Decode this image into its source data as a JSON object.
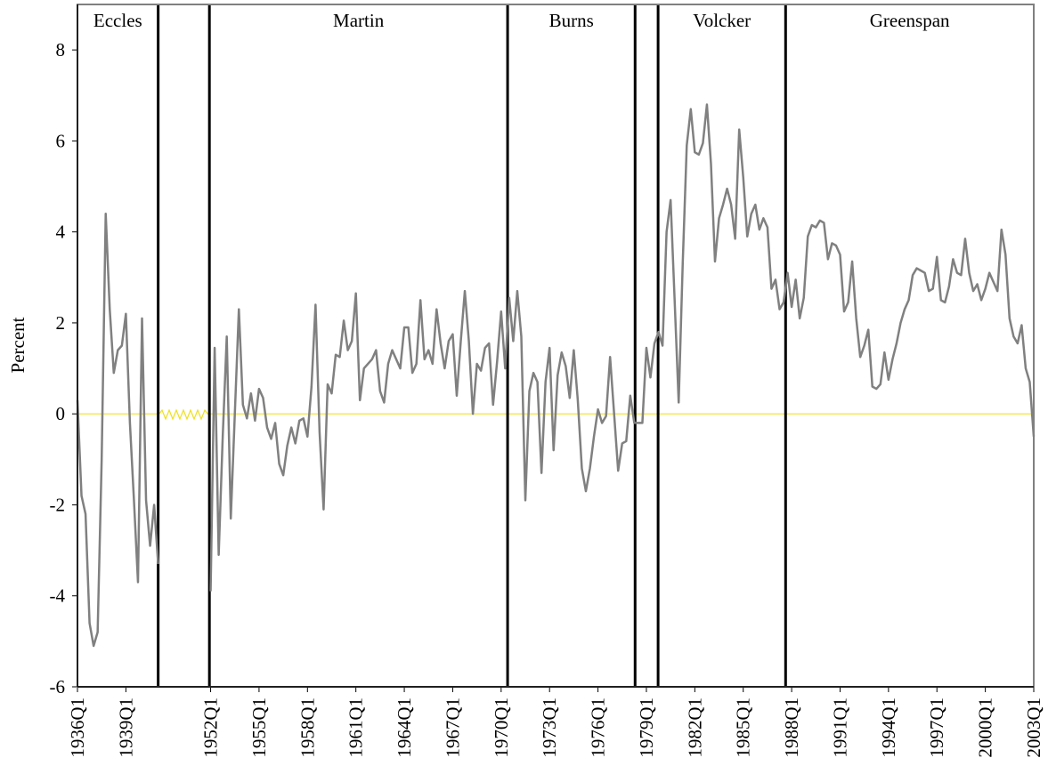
{
  "chart_data": {
    "type": "line",
    "y_label": "Percent",
    "annotations": [
      "Eccles",
      "Martin",
      "Burns",
      "Volcker",
      "Greenspan"
    ],
    "categories": [
      "1936Q1",
      null,
      null,
      null,
      null,
      null,
      null,
      null,
      null,
      null,
      null,
      null,
      "1939Q1",
      null,
      null,
      null,
      null,
      null,
      null,
      null,
      null,
      null,
      null,
      null,
      null,
      null,
      null,
      null,
      null,
      null,
      null,
      null,
      null,
      "1952Q1",
      null,
      null,
      null,
      null,
      null,
      null,
      null,
      null,
      null,
      null,
      null,
      "1955Q1",
      null,
      null,
      null,
      null,
      null,
      null,
      null,
      null,
      null,
      null,
      null,
      "1958Q1",
      null,
      null,
      null,
      null,
      null,
      null,
      null,
      null,
      null,
      null,
      null,
      "1961Q1",
      null,
      null,
      null,
      null,
      null,
      null,
      null,
      null,
      null,
      null,
      null,
      "1964Q1",
      null,
      null,
      null,
      null,
      null,
      null,
      null,
      null,
      null,
      null,
      null,
      "1967Q1",
      null,
      null,
      null,
      null,
      null,
      null,
      null,
      null,
      null,
      null,
      null,
      "1970Q1",
      null,
      null,
      null,
      null,
      null,
      null,
      null,
      null,
      null,
      null,
      null,
      "1973Q1",
      null,
      null,
      null,
      null,
      null,
      null,
      null,
      null,
      null,
      null,
      null,
      "1976Q1",
      null,
      null,
      null,
      null,
      null,
      null,
      null,
      null,
      null,
      null,
      null,
      "1979Q1",
      null,
      null,
      null,
      null,
      null,
      null,
      null,
      null,
      null,
      null,
      null,
      "1982Q1",
      null,
      null,
      null,
      null,
      null,
      null,
      null,
      null,
      null,
      null,
      null,
      "1985Q1",
      null,
      null,
      null,
      null,
      null,
      null,
      null,
      null,
      null,
      null,
      null,
      "1988Q1",
      null,
      null,
      null,
      null,
      null,
      null,
      null,
      null,
      null,
      null,
      null,
      "1991Q1",
      null,
      null,
      null,
      null,
      null,
      null,
      null,
      null,
      null,
      null,
      null,
      "1994Q1",
      null,
      null,
      null,
      null,
      null,
      null,
      null,
      null,
      null,
      null,
      null,
      "1997Q1",
      null,
      null,
      null,
      null,
      null,
      null,
      null,
      null,
      null,
      null,
      null,
      "2000Q1",
      null,
      null,
      null,
      null,
      null,
      null,
      null,
      null,
      null,
      null,
      null,
      "2003Q1"
    ],
    "values": [
      0.3,
      -1.8,
      -2.2,
      -4.6,
      -5.1,
      -4.8,
      -1.0,
      4.4,
      2.3,
      0.9,
      1.4,
      1.5,
      2.2,
      -0.2,
      -1.9,
      -3.7,
      2.1,
      -1.9,
      -2.9,
      -2.0,
      -3.3,
      null,
      null,
      null,
      null,
      null,
      null,
      null,
      null,
      null,
      null,
      null,
      null,
      -3.9,
      1.45,
      -3.1,
      -0.5,
      1.7,
      -2.3,
      0.0,
      2.3,
      0.2,
      -0.1,
      0.45,
      -0.15,
      0.55,
      0.35,
      -0.3,
      -0.55,
      -0.2,
      -1.1,
      -1.35,
      -0.7,
      -0.3,
      -0.65,
      -0.15,
      -0.1,
      -0.5,
      0.6,
      2.4,
      -0.4,
      -2.1,
      0.65,
      0.45,
      1.3,
      1.25,
      2.05,
      1.4,
      1.6,
      2.65,
      0.3,
      1.0,
      1.1,
      1.2,
      1.4,
      0.5,
      0.25,
      1.1,
      1.4,
      1.2,
      1.0,
      1.9,
      1.9,
      0.9,
      1.1,
      2.5,
      1.2,
      1.4,
      1.1,
      2.3,
      1.55,
      1.0,
      1.6,
      1.75,
      0.4,
      1.6,
      2.7,
      1.6,
      0.0,
      1.1,
      0.95,
      1.45,
      1.55,
      0.2,
      1.15,
      2.25,
      1.0,
      2.55,
      1.6,
      2.7,
      1.7,
      -1.9,
      0.5,
      0.9,
      0.7,
      -1.3,
      0.7,
      1.45,
      -0.8,
      0.85,
      1.35,
      1.05,
      0.35,
      1.4,
      0.3,
      -1.2,
      -1.7,
      -1.2,
      -0.5,
      0.1,
      -0.2,
      -0.05,
      1.25,
      0.0,
      -1.25,
      -0.65,
      -0.6,
      0.4,
      -0.2,
      -0.2,
      -0.2,
      1.45,
      0.8,
      1.55,
      1.8,
      1.5,
      4.0,
      4.7,
      2.5,
      0.25,
      3.3,
      5.9,
      6.7,
      5.75,
      5.7,
      5.95,
      6.8,
      5.5,
      3.35,
      4.3,
      4.6,
      4.95,
      4.6,
      3.85,
      6.25,
      5.2,
      3.9,
      4.4,
      4.6,
      4.05,
      4.3,
      4.1,
      2.75,
      2.95,
      2.3,
      2.45,
      3.1,
      2.35,
      2.95,
      2.1,
      2.55,
      3.9,
      4.15,
      4.1,
      4.25,
      4.2,
      3.4,
      3.75,
      3.7,
      3.5,
      2.25,
      2.45,
      3.35,
      2.1,
      1.25,
      1.5,
      1.85,
      0.6,
      0.55,
      0.65,
      1.35,
      0.75,
      1.2,
      1.55,
      2.0,
      2.3,
      2.5,
      3.05,
      3.2,
      3.15,
      3.1,
      2.7,
      2.75,
      3.45,
      2.5,
      2.45,
      2.8,
      3.4,
      3.1,
      3.05,
      3.85,
      3.1,
      2.7,
      2.85,
      2.5,
      2.75,
      3.1,
      2.9,
      2.7,
      4.05,
      3.5,
      2.1,
      1.7,
      1.55,
      1.95,
      1.0,
      0.7,
      -0.5
    ],
    "color": "#808080",
    "ylim": [
      -6,
      9
    ],
    "yticks": [
      -6,
      -4,
      -2,
      0,
      2,
      4,
      6,
      8
    ]
  }
}
